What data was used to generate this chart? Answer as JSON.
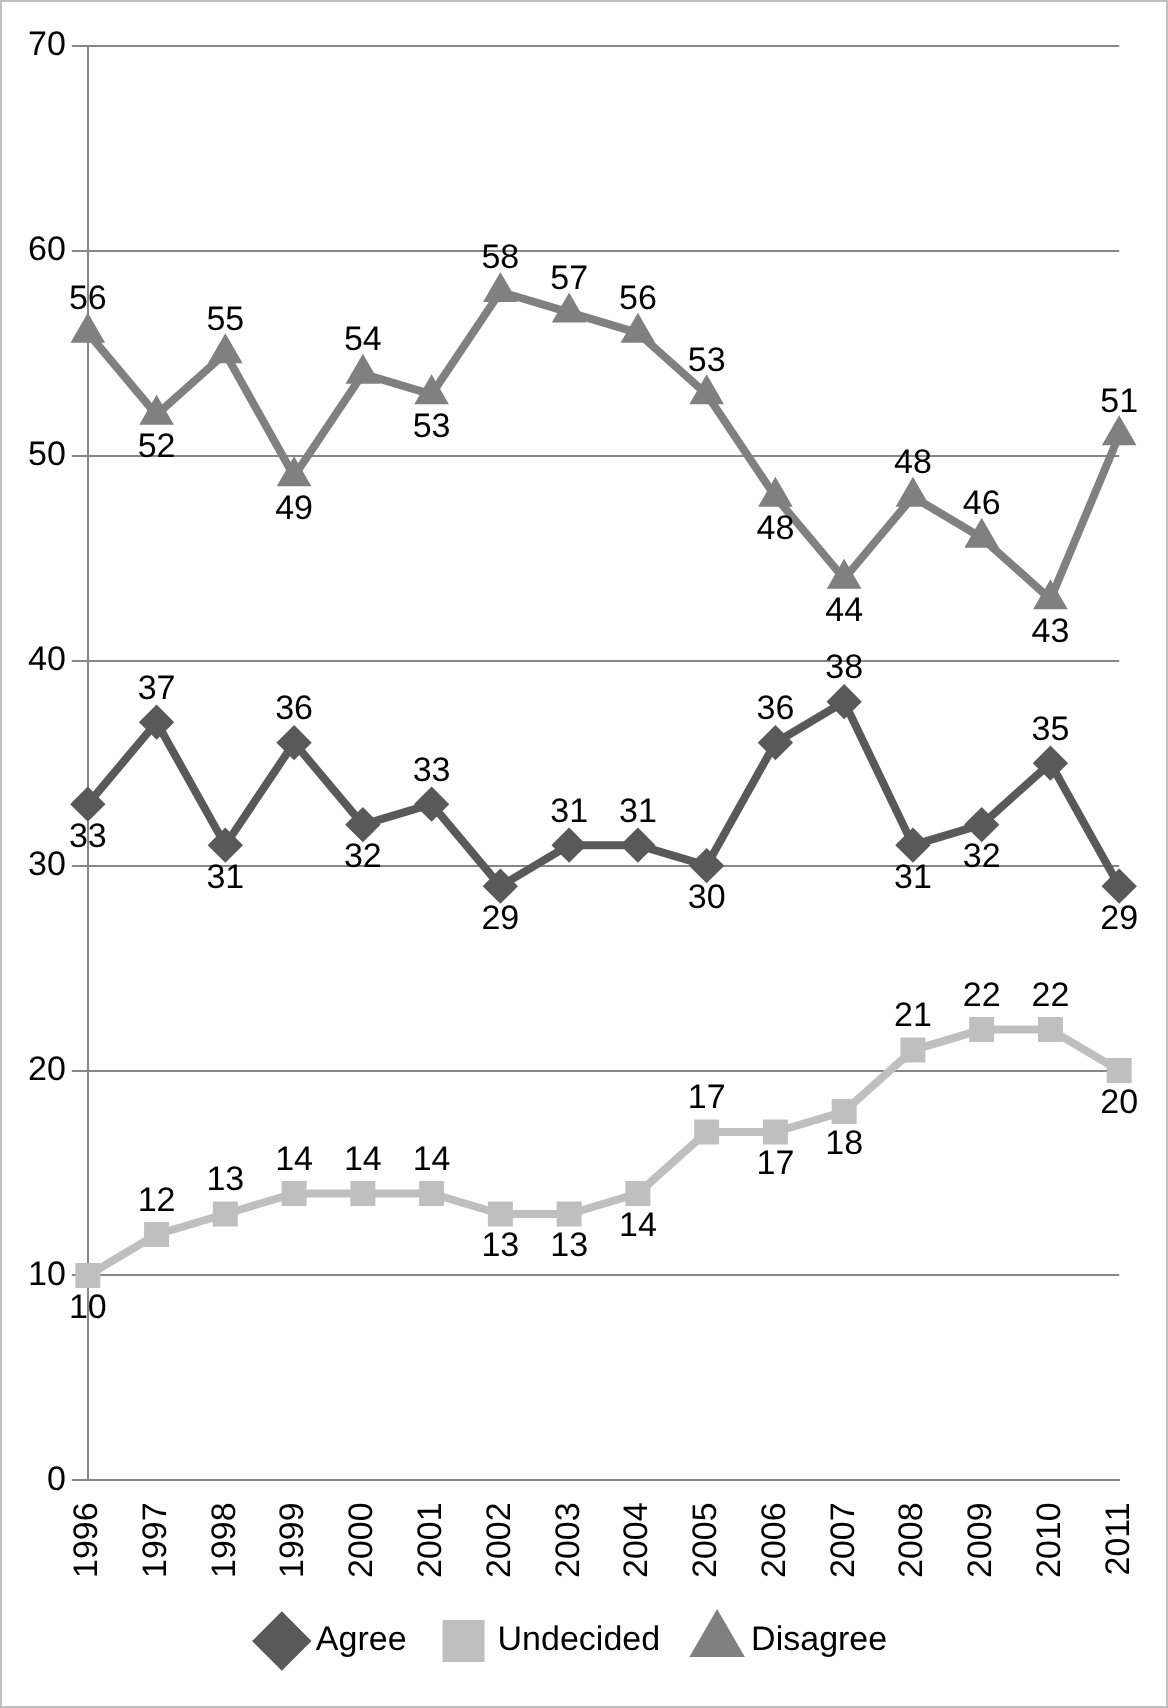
{
  "chart_data": {
    "type": "line",
    "categories": [
      "1996",
      "1997",
      "1998",
      "1999",
      "2000",
      "2001",
      "2002",
      "2003",
      "2004",
      "2005",
      "2006",
      "2007",
      "2008",
      "2009",
      "2010",
      "2011"
    ],
    "series": [
      {
        "name": "Agree",
        "color": "#595959",
        "marker": "diamond",
        "values": [
          33,
          37,
          31,
          36,
          32,
          33,
          29,
          31,
          31,
          30,
          36,
          38,
          31,
          32,
          35,
          29
        ]
      },
      {
        "name": "Undecided",
        "color": "#bfbfbf",
        "marker": "square",
        "values": [
          10,
          12,
          13,
          14,
          14,
          14,
          13,
          13,
          14,
          17,
          17,
          18,
          21,
          22,
          22,
          20
        ]
      },
      {
        "name": "Disagree",
        "color": "#808080",
        "marker": "triangle",
        "values": [
          56,
          52,
          55,
          49,
          54,
          53,
          58,
          57,
          56,
          53,
          48,
          44,
          48,
          46,
          43,
          51
        ]
      }
    ],
    "ylim": [
      0,
      70
    ],
    "yticks": [
      0,
      10,
      20,
      30,
      40,
      50,
      60,
      70
    ],
    "grid": "y",
    "legend": "bottom",
    "data_labels": true,
    "line_style": "solid"
  }
}
